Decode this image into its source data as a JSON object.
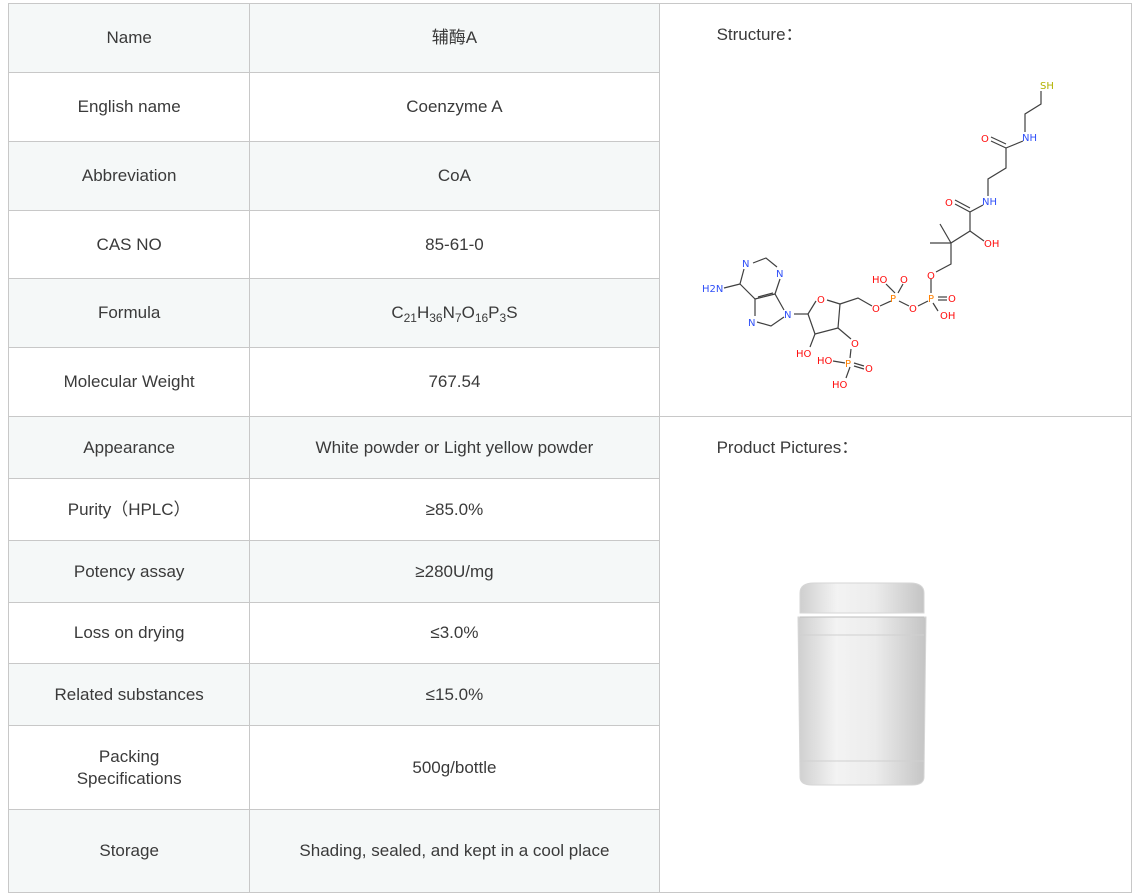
{
  "rows": [
    {
      "label": "Name",
      "value": "辅酶A"
    },
    {
      "label": "English name",
      "value": "Coenzyme A"
    },
    {
      "label": "Abbreviation",
      "value": "CoA"
    },
    {
      "label": "CAS NO",
      "value": "85-61-0"
    },
    {
      "label": "Formula",
      "value": "C21H36N7O16P3S",
      "formula_parts": [
        [
          "C",
          "21"
        ],
        [
          "H",
          "36"
        ],
        [
          "N",
          "7"
        ],
        [
          "O",
          "16"
        ],
        [
          "P",
          "3"
        ],
        [
          "S",
          ""
        ]
      ]
    },
    {
      "label": "Molecular Weight",
      "value": "767.54"
    },
    {
      "label": "Appearance",
      "value": "White powder or Light yellow powder"
    },
    {
      "label": "Purity（HPLC）",
      "value": "≥85.0%"
    },
    {
      "label": "Potency assay",
      "value": "≥280U/mg"
    },
    {
      "label": "Loss on drying",
      "value": "≤3.0%"
    },
    {
      "label": "Related substances",
      "value": "≤15.0%"
    },
    {
      "label": "Packing Specifications",
      "value": "500g/bottle"
    },
    {
      "label": "Storage",
      "value": "Shading, sealed, and kept in a cool place"
    }
  ],
  "structure": {
    "title": "Structure：",
    "atom_labels": [
      "SH",
      "NH",
      "O",
      "NH",
      "O",
      "OH",
      "O",
      "P",
      "O",
      "OH",
      "O",
      "P",
      "HO",
      "O",
      "O",
      "O",
      "HO",
      "O",
      "P",
      "HO",
      "O",
      "HO",
      "N",
      "N",
      "N",
      "N",
      "H2N"
    ],
    "colors": {
      "O": "#ff0d0d",
      "N": "#3050f8",
      "P": "#ff8000",
      "S": "#b2b200",
      "bond": "#404040"
    }
  },
  "product_pictures": {
    "title": "Product Pictures："
  },
  "colors": {
    "row_alt": "#f5f8f8",
    "border": "#c8c8c8",
    "text": "#3a3a3a"
  }
}
